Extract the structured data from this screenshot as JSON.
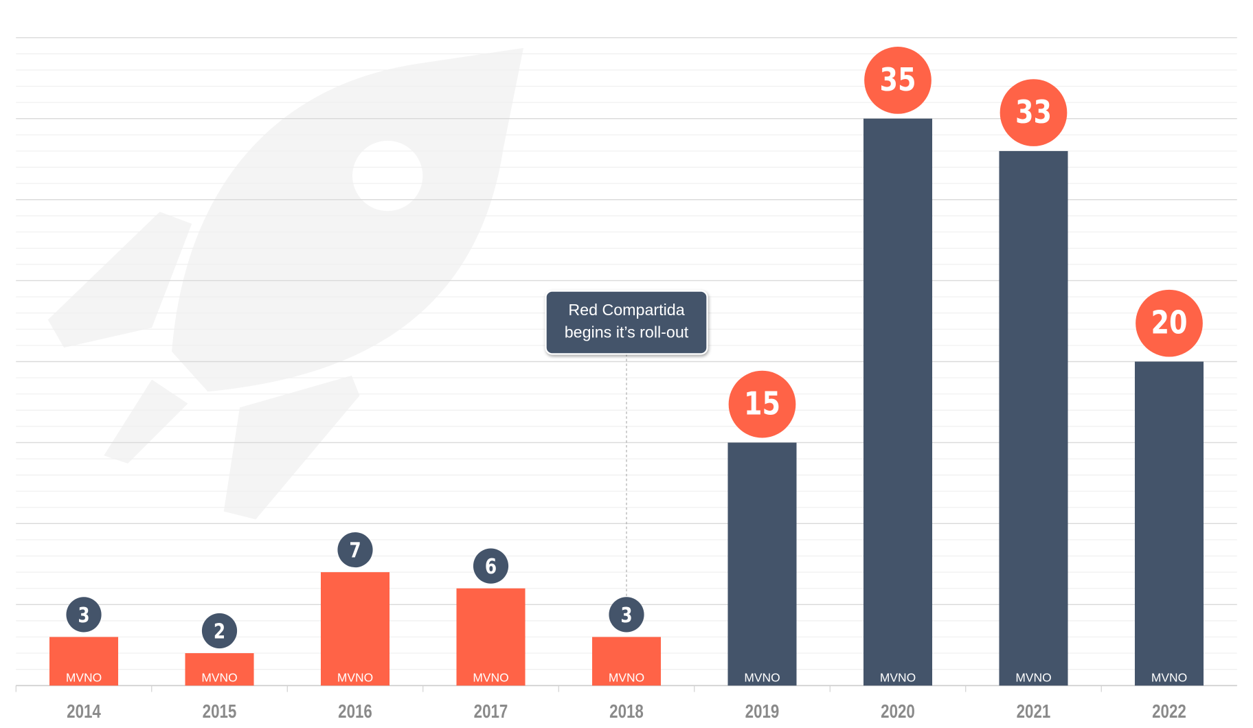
{
  "chart_data": {
    "type": "bar",
    "categories": [
      "2014",
      "2015",
      "2016",
      "2017",
      "2018",
      "2019",
      "2020",
      "2021",
      "2022"
    ],
    "values": [
      3,
      2,
      7,
      6,
      3,
      15,
      35,
      33,
      20
    ],
    "colors": [
      "#ff6347",
      "#ff6347",
      "#ff6347",
      "#ff6347",
      "#ff6347",
      "#44546a",
      "#44546a",
      "#44546a",
      "#44546a"
    ],
    "label_colors": [
      "#44546a",
      "#44546a",
      "#44546a",
      "#44546a",
      "#44546a",
      "#ff6347",
      "#ff6347",
      "#ff6347",
      "#ff6347"
    ],
    "bar_labels": [
      "MVNO",
      "MVNO",
      "MVNO",
      "MVNO",
      "MVNO",
      "MVNO",
      "MVNO",
      "MVNO",
      "MVNO"
    ],
    "ylim": [
      0,
      40
    ],
    "yticks": [
      0,
      5,
      10,
      15,
      20,
      25,
      30,
      35,
      40
    ],
    "grid": true,
    "annotation": {
      "category": "2018",
      "lines": [
        "Red Compartida",
        "begins it’s roll-out"
      ]
    }
  }
}
